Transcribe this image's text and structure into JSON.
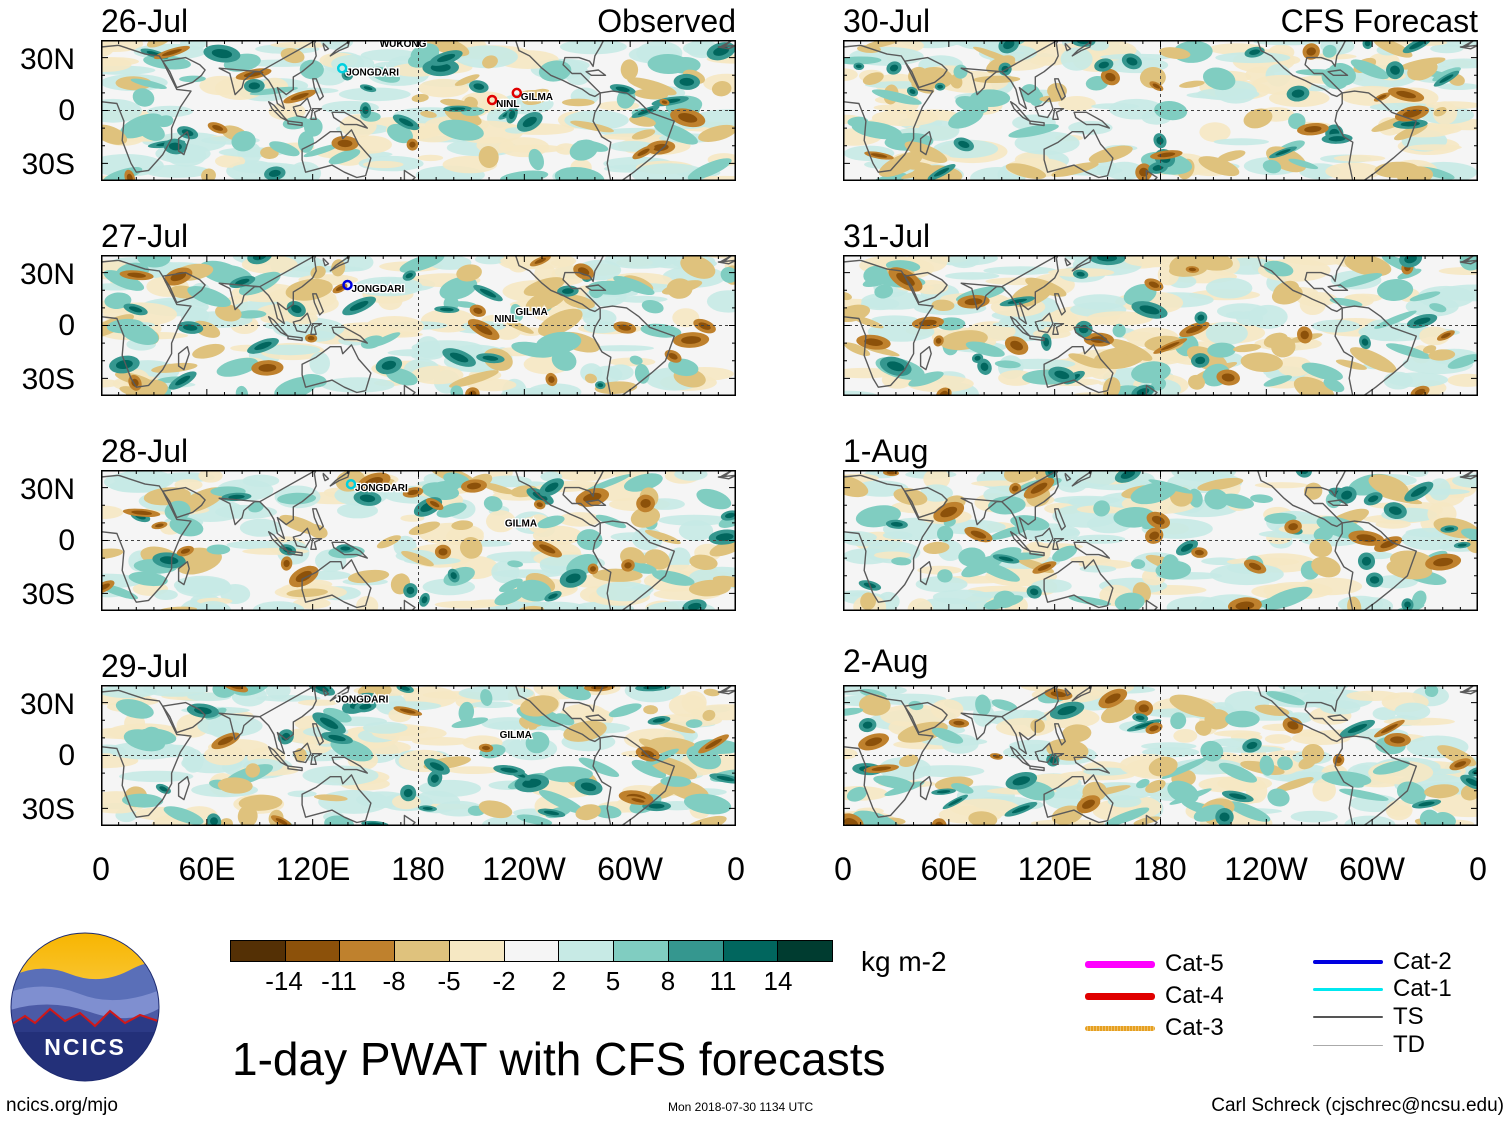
{
  "title": "1-day PWAT with CFS forecasts",
  "units": "kg m-2",
  "observed_label": "Observed",
  "forecast_label": "CFS Forecast",
  "observed_dates": [
    "26-Jul",
    "27-Jul",
    "28-Jul",
    "29-Jul"
  ],
  "forecast_dates": [
    "30-Jul",
    "31-Jul",
    "1-Aug",
    "2-Aug"
  ],
  "lat_labels": [
    "30N",
    "0",
    "30S"
  ],
  "lon_labels": [
    "0",
    "60E",
    "120E",
    "180",
    "120W",
    "60W",
    "0"
  ],
  "storms": {
    "d26": [
      "WUKONG",
      "JONGDARI",
      "NINL",
      "GILMA"
    ],
    "d27": [
      "JONGDARI",
      "NINL",
      "GILMA"
    ],
    "d28": [
      "JONGDARI",
      "GILMA"
    ],
    "d29": [
      "JONGDARI",
      "GILMA"
    ]
  },
  "colorbar": {
    "ticks": [
      "-14",
      "-11",
      "-8",
      "-5",
      "-2",
      "2",
      "5",
      "8",
      "11",
      "14"
    ],
    "colors": [
      "#543005",
      "#8c510a",
      "#bf812d",
      "#dfc27d",
      "#f6e8c3",
      "#f5f5f5",
      "#c7eae5",
      "#80cdc1",
      "#35978f",
      "#01665e",
      "#003c30"
    ]
  },
  "legend": [
    {
      "label": "Cat-5",
      "color": "#ff00ff"
    },
    {
      "label": "Cat-4",
      "color": "#e00000"
    },
    {
      "label": "Cat-3",
      "color": "#e6a020"
    },
    {
      "label": "Cat-2",
      "color": "#0000e0"
    },
    {
      "label": "Cat-1",
      "color": "#00e8f0"
    },
    {
      "label": "TS",
      "color": "#555555"
    },
    {
      "label": "TD",
      "color": "#aaaaaa"
    }
  ],
  "logo_text": "NCICS",
  "footer": {
    "left": "ncics.org/mjo",
    "middle": "Mon 2018-07-30 1134 UTC",
    "right": "Carl Schreck (cjschrec@ncsu.edu)"
  }
}
